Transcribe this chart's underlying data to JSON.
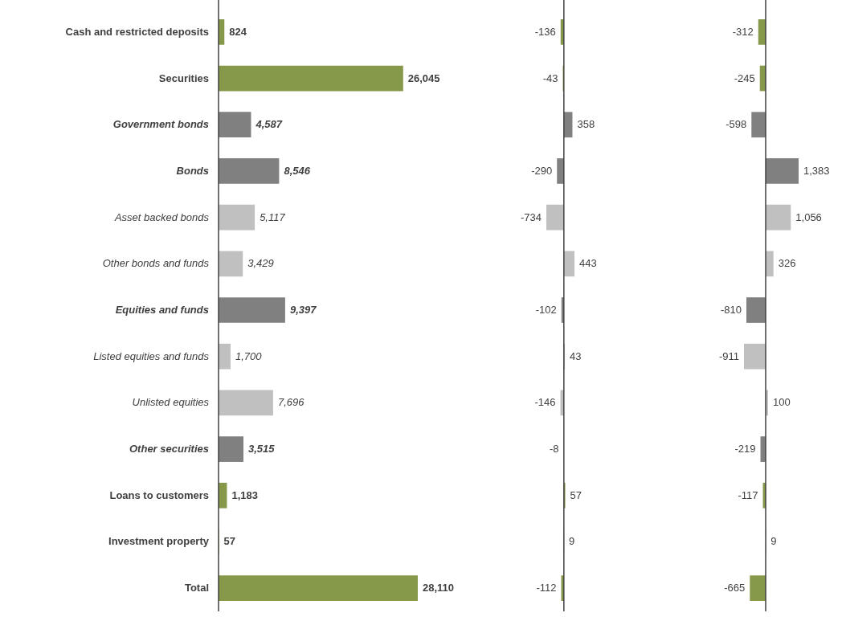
{
  "chart_data": [
    {
      "type": "bar",
      "orientation": "horizontal",
      "tick_labels": "y",
      "categories": [
        "Cash and restricted deposits",
        "Securities",
        "Government bonds",
        "Bonds",
        "Asset backed bonds",
        "Other bonds and funds",
        "Equities and funds",
        "Listed equities and funds",
        "Unlisted equities",
        "Other securities",
        "Loans to customers",
        "Investment property",
        "Total"
      ],
      "values": [
        824,
        26045,
        4587,
        8546,
        5117,
        3429,
        9397,
        1700,
        7696,
        3515,
        1183,
        57,
        28110
      ],
      "value_labels": [
        "824",
        "26,045",
        "4,587",
        "8,546",
        "5,117",
        "3,429",
        "9,397",
        "1,700",
        "7,696",
        "3,515",
        "1,183",
        "57",
        "28,110"
      ],
      "colors": [
        "#86984a",
        "#86984a",
        "#808080",
        "#808080",
        "#c0c0c0",
        "#c0c0c0",
        "#808080",
        "#c0c0c0",
        "#c0c0c0",
        "#808080",
        "#86984a",
        "#86984a",
        "#86984a"
      ]
    },
    {
      "type": "bar",
      "orientation": "horizontal",
      "categories": [
        null,
        null,
        null,
        null,
        null,
        null,
        null,
        null,
        null,
        null,
        null,
        null,
        null
      ],
      "values": [
        -136,
        -43,
        358,
        -290,
        -734,
        443,
        -102,
        43,
        -146,
        -8,
        57,
        9,
        -112
      ],
      "value_labels": [
        "-136",
        "-43",
        "358",
        "-290",
        "-734",
        "443",
        "-102",
        "43",
        "-146",
        "-8",
        "57",
        "9",
        "-112"
      ],
      "colors": [
        "#86984a",
        "#86984a",
        "#808080",
        "#808080",
        "#c0c0c0",
        "#c0c0c0",
        "#808080",
        "#c0c0c0",
        "#c0c0c0",
        "#808080",
        "#86984a",
        "#86984a",
        "#86984a"
      ]
    },
    {
      "type": "bar",
      "orientation": "horizontal",
      "categories": [
        null,
        null,
        null,
        null,
        null,
        null,
        null,
        null,
        null,
        null,
        null,
        null,
        null
      ],
      "values": [
        -312,
        -245,
        -598,
        1383,
        1056,
        326,
        -810,
        -911,
        100,
        -219,
        -117,
        9,
        -665
      ],
      "value_labels": [
        "-312",
        "-245",
        "-598",
        "1,383",
        "1,056",
        "326",
        "-810",
        "-911",
        "100",
        "-219",
        "-117",
        "9",
        "-665"
      ],
      "colors": [
        "#86984a",
        "#86984a",
        "#808080",
        "#808080",
        "#c0c0c0",
        "#c0c0c0",
        "#808080",
        "#c0c0c0",
        "#c0c0c0",
        "#808080",
        "#86984a",
        "#86984a",
        "#86984a"
      ]
    }
  ]
}
